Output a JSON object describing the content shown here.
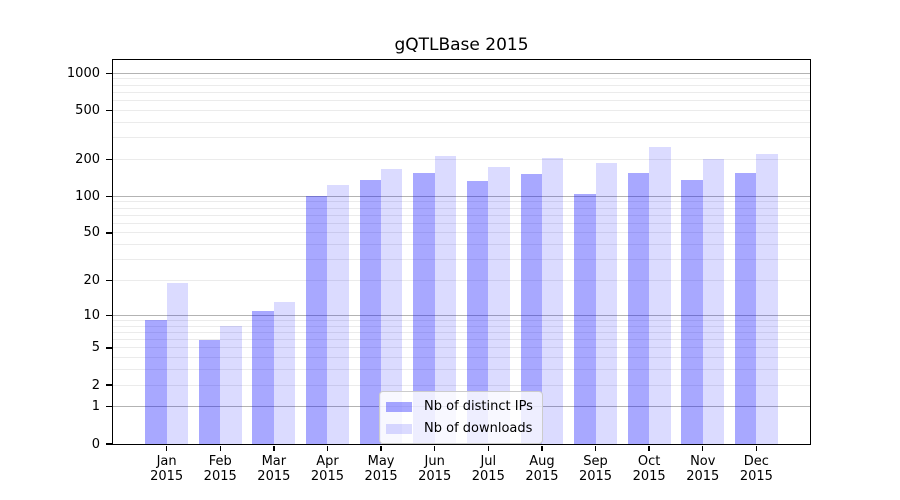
{
  "title": "gQTLBase 2015",
  "chart_data": {
    "type": "bar",
    "title": "gQTLBase 2015",
    "y_scale": "log10(1+y)",
    "y_max": 1280,
    "grid": "on",
    "legend_position": "lower-center-inside",
    "y_ticks": [
      {
        "value": 0,
        "label": "0"
      },
      {
        "value": 1,
        "label": "1"
      },
      {
        "value": 2,
        "label": "2"
      },
      {
        "value": 5,
        "label": "5"
      },
      {
        "value": 10,
        "label": "10"
      },
      {
        "value": 20,
        "label": "20"
      },
      {
        "value": 50,
        "label": "50"
      },
      {
        "value": 100,
        "label": "100"
      },
      {
        "value": 200,
        "label": "200"
      },
      {
        "value": 500,
        "label": "500"
      },
      {
        "value": 1000,
        "label": "1000"
      }
    ],
    "grid_major": [
      1,
      10,
      100,
      1000
    ],
    "grid_minor": [
      2,
      3,
      4,
      5,
      6,
      7,
      8,
      9,
      20,
      30,
      40,
      50,
      60,
      70,
      80,
      90,
      200,
      300,
      400,
      500,
      600,
      700,
      800,
      900
    ],
    "categories": [
      "Jan",
      "Feb",
      "Mar",
      "Apr",
      "May",
      "Jun",
      "Jul",
      "Aug",
      "Sep",
      "Oct",
      "Nov",
      "Dec"
    ],
    "x_sublabel": "2015",
    "series": [
      {
        "name": "Nb of distinct IPs",
        "color_hex": "#A9A9F5",
        "color_rgba": "rgba(0,0,255,0.34)",
        "values": [
          9,
          6,
          11,
          100,
          135,
          154,
          134,
          151,
          104,
          156,
          135,
          155
        ]
      },
      {
        "name": "Nb of downloads",
        "color_hex": "#DCDCFA",
        "color_rgba": "rgba(0,0,255,0.14)",
        "values": [
          19,
          8,
          13,
          124,
          168,
          215,
          175,
          206,
          188,
          253,
          201,
          220
        ]
      }
    ]
  }
}
